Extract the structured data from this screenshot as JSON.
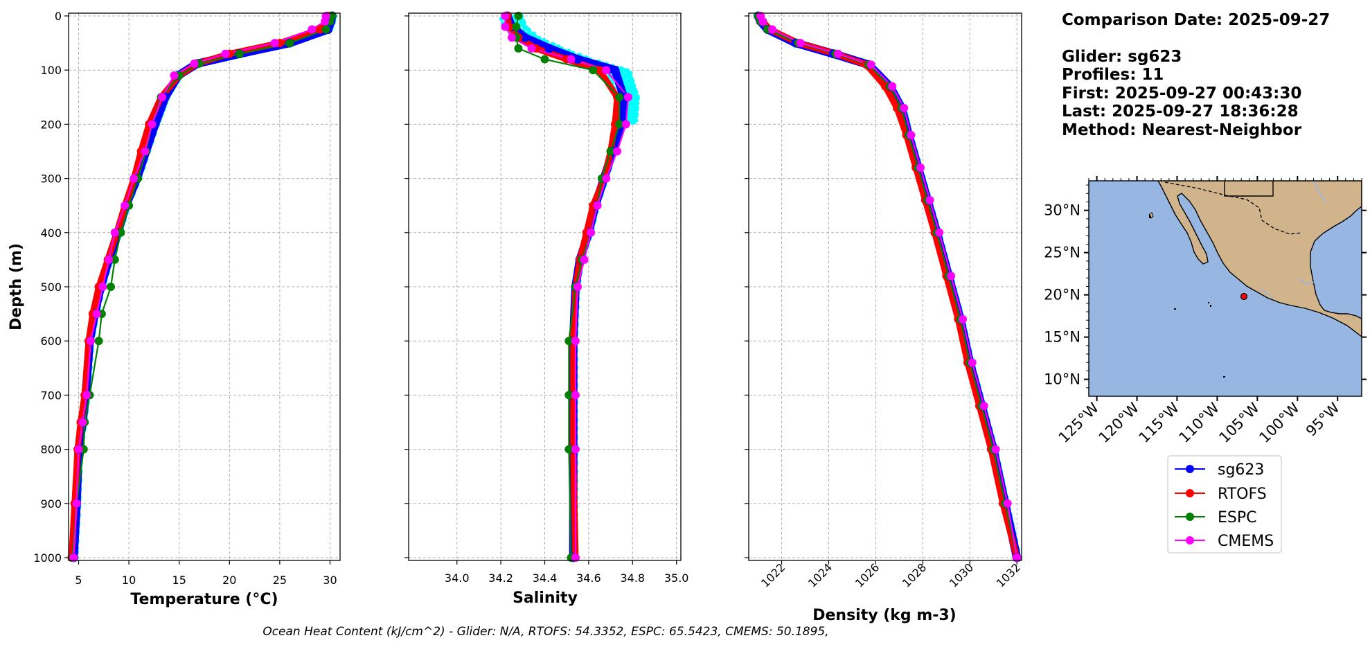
{
  "chart_data": [
    {
      "type": "line",
      "xlabel": "Temperature (°C)",
      "ylabel": "Depth (m)",
      "xlim": [
        4,
        31
      ],
      "ylim": [
        1000,
        0
      ],
      "xticks": [
        5,
        10,
        15,
        20,
        25,
        30
      ],
      "yticks": [
        0,
        100,
        200,
        300,
        400,
        500,
        600,
        700,
        800,
        900,
        1000
      ],
      "grid": true,
      "series": [
        {
          "name": "sg623",
          "x": [
            30.2,
            30.1,
            29.8,
            26.0,
            21.0,
            16.8,
            14.9,
            13.6,
            12.6,
            11.7,
            10.8,
            9.7,
            8.9,
            8.0,
            7.2,
            6.6,
            6.1,
            5.7,
            5.4,
            5.0,
            4.8,
            4.5
          ],
          "y": [
            0,
            10,
            25,
            50,
            70,
            88,
            110,
            150,
            200,
            250,
            300,
            350,
            400,
            450,
            500,
            550,
            600,
            700,
            750,
            800,
            900,
            1000
          ]
        },
        {
          "name": "RTOFS",
          "x": [
            29.8,
            29.6,
            29.0,
            25.0,
            20.0,
            16.8,
            15.0,
            13.2,
            12.0,
            11.2,
            10.5,
            9.6,
            8.8,
            7.9,
            7.0,
            6.4,
            6.0,
            5.6,
            5.2,
            4.9,
            4.6,
            4.3
          ],
          "y": [
            0,
            10,
            25,
            50,
            70,
            88,
            110,
            150,
            200,
            250,
            300,
            350,
            400,
            450,
            500,
            550,
            600,
            700,
            750,
            800,
            900,
            1000
          ]
        },
        {
          "name": "ESPC",
          "x": [
            30.2,
            30.0,
            29.6,
            26.0,
            21.0,
            17.0,
            15.0,
            13.2,
            12.3,
            11.7,
            10.9,
            10.0,
            9.2,
            8.6,
            8.2,
            7.3,
            7.0,
            6.1,
            5.6,
            5.5,
            4.8,
            4.4
          ],
          "y": [
            0,
            10,
            25,
            50,
            70,
            88,
            110,
            150,
            200,
            250,
            300,
            350,
            400,
            450,
            500,
            550,
            600,
            700,
            750,
            800,
            900,
            1000
          ]
        },
        {
          "name": "CMEMS",
          "x": [
            29.6,
            29.5,
            28.2,
            24.5,
            19.6,
            16.5,
            14.5,
            13.3,
            12.3,
            11.6,
            10.5,
            9.6,
            8.6,
            8.0,
            7.4,
            6.8,
            6.2,
            5.8,
            5.4,
            5.0,
            4.8,
            4.5
          ],
          "y": [
            0,
            10,
            25,
            50,
            70,
            88,
            110,
            150,
            200,
            250,
            300,
            350,
            400,
            450,
            500,
            550,
            600,
            700,
            750,
            800,
            900,
            1000
          ]
        }
      ]
    },
    {
      "type": "line",
      "xlabel": "Salinity",
      "ylabel": "",
      "xlim": [
        33.78,
        35.02
      ],
      "ylim": [
        1000,
        0
      ],
      "xticks": [
        34.0,
        34.2,
        34.4,
        34.6,
        34.8,
        35.0
      ],
      "yticks": [
        0,
        100,
        200,
        300,
        400,
        500,
        600,
        700,
        800,
        900,
        1000
      ],
      "grid": true,
      "series": [
        {
          "name": "sg623",
          "x": [
            34.23,
            34.25,
            34.31,
            34.42,
            34.55,
            34.72,
            34.76,
            34.75,
            34.71,
            34.67,
            34.63,
            34.6,
            34.56,
            34.54,
            34.53,
            34.53,
            34.53,
            34.53
          ],
          "y": [
            0,
            20,
            40,
            60,
            80,
            100,
            150,
            200,
            250,
            300,
            350,
            400,
            450,
            500,
            600,
            700,
            800,
            1000
          ]
        },
        {
          "name": "RTOFS",
          "x": [
            34.23,
            34.24,
            34.28,
            34.36,
            34.5,
            34.65,
            34.73,
            34.72,
            34.7,
            34.67,
            34.62,
            34.59,
            34.56,
            34.54,
            34.53,
            34.53,
            34.53,
            34.54
          ],
          "y": [
            0,
            20,
            40,
            60,
            80,
            100,
            150,
            200,
            250,
            300,
            350,
            400,
            450,
            500,
            600,
            700,
            800,
            1000
          ]
        },
        {
          "name": "ESPC",
          "x": [
            34.28,
            34.27,
            34.27,
            34.28,
            34.4,
            34.62,
            34.74,
            34.74,
            34.7,
            34.66,
            34.64,
            34.61,
            34.57,
            34.54,
            34.51,
            34.51,
            34.51,
            34.52
          ],
          "y": [
            0,
            20,
            40,
            60,
            80,
            100,
            150,
            200,
            250,
            300,
            350,
            400,
            450,
            500,
            600,
            700,
            800,
            1000
          ]
        },
        {
          "name": "CMEMS",
          "x": [
            34.22,
            34.22,
            34.25,
            34.34,
            34.52,
            34.68,
            34.78,
            34.77,
            34.73,
            34.68,
            34.64,
            34.61,
            34.58,
            34.55,
            34.54,
            34.54,
            34.54,
            34.54
          ],
          "y": [
            0,
            20,
            40,
            60,
            80,
            100,
            150,
            200,
            250,
            300,
            350,
            400,
            450,
            500,
            600,
            700,
            800,
            1000
          ]
        }
      ]
    },
    {
      "type": "line",
      "xlabel": "Density (kg m-3)",
      "ylabel": "",
      "xlim": [
        1020.6,
        1032.2
      ],
      "ylim": [
        1000,
        0
      ],
      "xticks": [
        1022,
        1024,
        1026,
        1028,
        1030,
        1032
      ],
      "yticks": [
        0,
        100,
        200,
        300,
        400,
        500,
        600,
        700,
        800,
        900,
        1000
      ],
      "grid": true,
      "series": [
        {
          "name": "sg623",
          "x": [
            1021.0,
            1021.1,
            1021.4,
            1022.6,
            1024.2,
            1025.7,
            1026.6,
            1027.1,
            1027.4,
            1027.8,
            1028.2,
            1028.6,
            1029.1,
            1029.6,
            1030.0,
            1030.5,
            1031.0,
            1031.5,
            1032.0
          ],
          "y": [
            0,
            10,
            25,
            50,
            70,
            90,
            130,
            170,
            220,
            280,
            340,
            400,
            480,
            560,
            640,
            720,
            800,
            900,
            1000
          ]
        },
        {
          "name": "RTOFS",
          "x": [
            1021.1,
            1021.2,
            1021.5,
            1022.7,
            1024.3,
            1025.6,
            1026.4,
            1026.9,
            1027.3,
            1027.7,
            1028.1,
            1028.5,
            1029.0,
            1029.5,
            1029.9,
            1030.4,
            1030.9,
            1031.4,
            1032.0
          ],
          "y": [
            0,
            10,
            25,
            50,
            70,
            90,
            130,
            170,
            220,
            280,
            340,
            400,
            480,
            560,
            640,
            720,
            800,
            900,
            1000
          ]
        },
        {
          "name": "ESPC",
          "x": [
            1021.0,
            1021.1,
            1021.4,
            1022.7,
            1024.3,
            1025.7,
            1026.6,
            1027.1,
            1027.4,
            1027.8,
            1028.2,
            1028.6,
            1029.1,
            1029.6,
            1030.0,
            1030.5,
            1031.0,
            1031.5,
            1032.0
          ],
          "y": [
            0,
            10,
            25,
            50,
            70,
            90,
            130,
            170,
            220,
            280,
            340,
            400,
            480,
            560,
            640,
            720,
            800,
            900,
            1000
          ]
        },
        {
          "name": "CMEMS",
          "x": [
            1021.1,
            1021.2,
            1021.6,
            1022.8,
            1024.4,
            1025.8,
            1026.7,
            1027.2,
            1027.5,
            1027.9,
            1028.3,
            1028.7,
            1029.2,
            1029.7,
            1030.1,
            1030.6,
            1031.1,
            1031.6,
            1032.0
          ],
          "y": [
            0,
            10,
            25,
            50,
            70,
            90,
            130,
            170,
            220,
            280,
            340,
            400,
            480,
            560,
            640,
            720,
            800,
            900,
            1000
          ]
        }
      ]
    }
  ],
  "series_colors": {
    "sg623": "#0000ff",
    "RTOFS": "#ff0000",
    "ESPC": "#008000",
    "CMEMS": "#ff00ff",
    "scatter": "#00ffff"
  },
  "legend": {
    "placement": "below-map",
    "entries": [
      "sg623",
      "RTOFS",
      "ESPC",
      "CMEMS"
    ]
  },
  "info": {
    "line1": "Comparison Date: 2025-09-27",
    "line2": "Glider: sg623",
    "line3": "Profiles: 11",
    "line4": "First: 2025-09-27 00:43:30",
    "line5": "Last: 2025-09-27 18:36:28",
    "line6": "Method: Nearest-Neighbor"
  },
  "map": {
    "lat_ticks": [
      "30°N",
      "25°N",
      "20°N",
      "15°N",
      "10°N"
    ],
    "lat_values": [
      30,
      25,
      20,
      15,
      10
    ],
    "lon_ticks": [
      "125°W",
      "120°W",
      "115°W",
      "110°W",
      "105°W",
      "100°W",
      "95°W"
    ],
    "lon_values": [
      -125,
      -120,
      -115,
      -110,
      -105,
      -100,
      -95
    ],
    "extent": {
      "lon": [
        -126,
        -92
      ],
      "lat": [
        8,
        33.5
      ]
    },
    "glider_position": {
      "lon": -106.5,
      "lat": 20.2
    },
    "ocean_color": "#97b6e1",
    "land_color": "#d2b48c"
  },
  "footer": {
    "ohc": "Ocean Heat Content (kJ/cm^2) - Glider: N/A,  RTOFS: 54.3352,  ESPC: 65.5423,  CMEMS: 50.1895,"
  }
}
